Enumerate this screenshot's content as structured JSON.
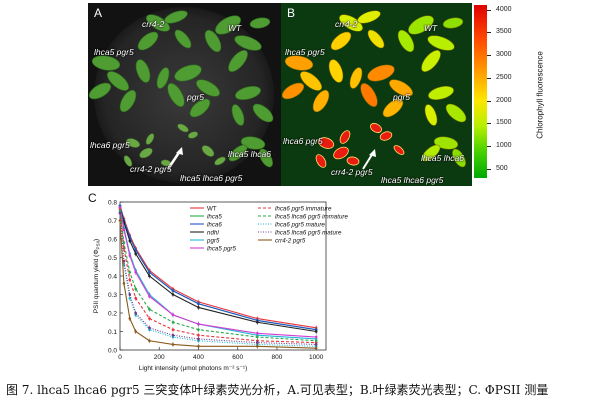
{
  "panel_a": {
    "label": "A",
    "genotypes": {
      "crr4_2_top": "crr4-2",
      "wt": "WT",
      "lhca5_pgr5": "lhca5 pgr5",
      "pgr5": "pgr5",
      "lhca6_pgr5": "lhca6 pgr5",
      "lhca5_lhca6": "lhca5 lhca6",
      "crr4_2_pgr5": "crr4-2 pgr5",
      "lhca5_lhca6_pgr5": "lhca5 lhca6 pgr5"
    }
  },
  "panel_b": {
    "label": "B",
    "genotypes": {
      "crr4_2_top": "crr4-2",
      "wt": "WT",
      "lhca5_pgr5": "lhca5 pgr5",
      "pgr5": "pgr5",
      "lhca6_pgr5": "lhca6 pgr5",
      "lhca5_lhca6": "lhca5 lhca6",
      "crr4_2_pgr5": "crr4-2 pgr5",
      "lhca5_lhca6_pgr5": "lhca5 lhca6 pgr5"
    },
    "colorbar": {
      "label": "Chlorophyll fluorescence",
      "ticks": [
        4000,
        3500,
        3000,
        2500,
        2000,
        1500,
        1000,
        500
      ],
      "range": [
        300,
        4100
      ],
      "colors_top_to_bottom": [
        "#e00000",
        "#ff4a00",
        "#ff9a00",
        "#ffe600",
        "#b6ef00",
        "#45d100",
        "#00a800"
      ]
    }
  },
  "panel_c": {
    "label": "C"
  },
  "chart_data": {
    "type": "line",
    "xlabel": "Light intensity (μmol photons m⁻² s⁻¹)",
    "ylabel": "PSII quantum yield (Φ",
    "ylabel_sub": "PSII",
    "ylabel_end": ")",
    "xlim": [
      0,
      1050
    ],
    "ylim": [
      0,
      0.8
    ],
    "xticks": [
      0,
      200,
      400,
      600,
      800,
      1000
    ],
    "yticks": [
      0.0,
      0.1,
      0.2,
      0.3,
      0.4,
      0.5,
      0.6,
      0.7,
      0.8
    ],
    "ytick_labels": [
      "0.0",
      "0.1",
      "0.2",
      "0.3",
      "0.4",
      "0.5",
      "0.6",
      "0.7",
      "0.8"
    ],
    "grid": false,
    "legend_placement": "top-right",
    "x": [
      0,
      20,
      50,
      80,
      150,
      270,
      400,
      700,
      1000
    ],
    "series": [
      {
        "name": "WT",
        "color": "#e8323c",
        "dash": "solid",
        "values": [
          0.78,
          0.71,
          0.62,
          0.55,
          0.43,
          0.33,
          0.26,
          0.17,
          0.12
        ]
      },
      {
        "name": "lhca5",
        "color": "#2aa84a",
        "dash": "solid",
        "values": [
          0.78,
          0.7,
          0.61,
          0.54,
          0.42,
          0.32,
          0.25,
          0.16,
          0.11
        ]
      },
      {
        "name": "lhca6",
        "color": "#2255cc",
        "dash": "solid",
        "values": [
          0.78,
          0.7,
          0.61,
          0.54,
          0.42,
          0.32,
          0.25,
          0.16,
          0.11
        ]
      },
      {
        "name": "ndhl",
        "color": "#222222",
        "dash": "solid",
        "values": [
          0.77,
          0.69,
          0.59,
          0.52,
          0.4,
          0.3,
          0.23,
          0.15,
          0.1
        ]
      },
      {
        "name": "pgr5",
        "color": "#22b8d8",
        "dash": "solid",
        "values": [
          0.77,
          0.66,
          0.52,
          0.43,
          0.3,
          0.19,
          0.14,
          0.08,
          0.06
        ]
      },
      {
        "name": "lhca5 pgr5",
        "color": "#d23cd2",
        "dash": "solid",
        "values": [
          0.77,
          0.65,
          0.51,
          0.42,
          0.29,
          0.19,
          0.14,
          0.09,
          0.07
        ]
      },
      {
        "name": "lhca6 pgr5 immature",
        "color": "#e8323c",
        "dash": "dashed",
        "values": [
          0.76,
          0.55,
          0.38,
          0.28,
          0.17,
          0.11,
          0.08,
          0.05,
          0.04
        ]
      },
      {
        "name": "lhca5 lhca6 pgr5 immature",
        "color": "#2aa84a",
        "dash": "dashed",
        "values": [
          0.75,
          0.58,
          0.42,
          0.33,
          0.22,
          0.15,
          0.11,
          0.07,
          0.05
        ]
      },
      {
        "name": "lhca6 pgr5 mature",
        "color": "#22b8d8",
        "dash": "dotted",
        "values": [
          0.74,
          0.46,
          0.28,
          0.19,
          0.11,
          0.07,
          0.05,
          0.03,
          0.02
        ]
      },
      {
        "name": "lhca5 lhca6 pgr5 mature",
        "color": "#6a3a8a",
        "dash": "dotted",
        "values": [
          0.74,
          0.48,
          0.3,
          0.2,
          0.12,
          0.08,
          0.06,
          0.04,
          0.03
        ]
      },
      {
        "name": "crr4-2 pgr5",
        "color": "#8b5a1b",
        "dash": "solid",
        "values": [
          0.7,
          0.36,
          0.17,
          0.1,
          0.05,
          0.03,
          0.02,
          0.02,
          0.01
        ]
      }
    ]
  },
  "caption": "图 7. lhca5 lhca6 pgr5 三突变体叶绿素荧光分析，A.可见表型；B.叶绿素荧光表型；C. ΦPSII 测量"
}
